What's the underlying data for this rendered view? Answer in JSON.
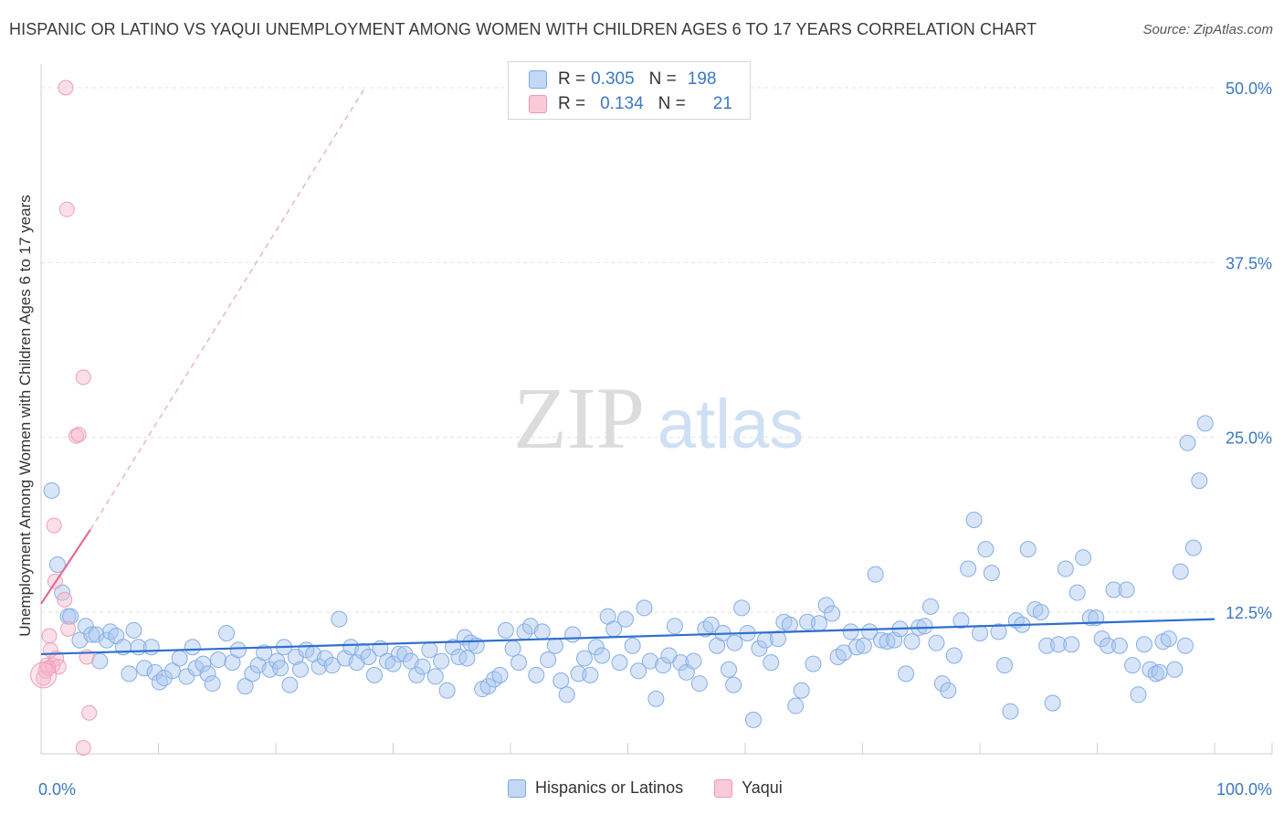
{
  "title": "HISPANIC OR LATINO VS YAQUI UNEMPLOYMENT AMONG WOMEN WITH CHILDREN AGES 6 TO 17 YEARS CORRELATION CHART",
  "source": "Source: ZipAtlas.com",
  "watermark": {
    "zip": "ZIP",
    "atlas": "atlas"
  },
  "legend": {
    "rows": [
      {
        "r_label": "R =",
        "r_value": "0.305",
        "n_label": "N =",
        "n_value": "198",
        "color": "#a9c6ef"
      },
      {
        "r_label": "R =",
        "r_value": "0.134",
        "n_label": "N =",
        "n_value": "21",
        "color": "#f6b8cb"
      }
    ]
  },
  "bottom_legend": [
    {
      "label": "Hispanics or Latinos",
      "color": "#a9c6ef"
    },
    {
      "label": "Yaqui",
      "color": "#f6b8cb"
    }
  ],
  "colors": {
    "blue_point": "#a9c6ef",
    "blue_line": "#2f6fcc",
    "pink_point": "#f6b8cb",
    "pink_line": "#e36b92",
    "axis_label": "#3b78c4"
  },
  "chart_data": {
    "type": "scatter",
    "title": "HISPANIC OR LATINO VS YAQUI UNEMPLOYMENT AMONG WOMEN WITH CHILDREN AGES 6 TO 17 YEARS CORRELATION CHART",
    "xlabel": "",
    "ylabel": "Unemployment Among Women with Children Ages 6 to 17 years",
    "xlim": [
      0,
      100
    ],
    "ylim": [
      0,
      51
    ],
    "x_tick_labels": [
      "0.0%",
      "100.0%"
    ],
    "y_ticks": [
      12.5,
      25.0,
      37.5,
      50.0
    ],
    "y_tick_labels": [
      "12.5%",
      "25.0%",
      "37.5%",
      "50.0%"
    ],
    "grid": "horizontal dashed",
    "legend_position": "top-center",
    "series": [
      {
        "name": "Hispanics or Latinos",
        "color": "#a9c6ef",
        "trend": {
          "x": [
            0,
            100
          ],
          "y": [
            9.5,
            12.0
          ]
        },
        "points": [
          [
            0.9,
            21.2
          ],
          [
            1.4,
            15.9
          ],
          [
            1.8,
            13.9
          ],
          [
            2.3,
            12.2
          ],
          [
            2.5,
            12.2
          ],
          [
            3.3,
            10.5
          ],
          [
            3.8,
            11.5
          ],
          [
            4.3,
            10.9
          ],
          [
            4.7,
            10.9
          ],
          [
            5.0,
            9.0
          ],
          [
            5.6,
            10.5
          ],
          [
            5.9,
            11.1
          ],
          [
            6.4,
            10.8
          ],
          [
            7.0,
            10.0
          ],
          [
            7.5,
            8.1
          ],
          [
            7.9,
            11.2
          ],
          [
            8.3,
            10.0
          ],
          [
            8.8,
            8.5
          ],
          [
            9.4,
            10.0
          ],
          [
            9.7,
            8.2
          ],
          [
            10.1,
            7.5
          ],
          [
            10.5,
            7.8
          ],
          [
            11.2,
            8.3
          ],
          [
            11.8,
            9.2
          ],
          [
            12.4,
            7.9
          ],
          [
            12.9,
            10.0
          ],
          [
            13.2,
            8.5
          ],
          [
            13.8,
            8.8
          ],
          [
            14.2,
            8.1
          ],
          [
            14.6,
            7.4
          ],
          [
            15.1,
            9.1
          ],
          [
            15.8,
            11.0
          ],
          [
            16.3,
            8.9
          ],
          [
            16.8,
            9.8
          ],
          [
            17.4,
            7.2
          ],
          [
            18.0,
            8.1
          ],
          [
            18.5,
            8.7
          ],
          [
            19.0,
            9.6
          ],
          [
            19.5,
            8.4
          ],
          [
            20.1,
            9.0
          ],
          [
            20.7,
            10.0
          ],
          [
            21.2,
            7.3
          ],
          [
            21.7,
            9.3
          ],
          [
            22.1,
            8.4
          ],
          [
            22.6,
            9.8
          ],
          [
            23.2,
            9.5
          ],
          [
            23.7,
            8.6
          ],
          [
            24.2,
            9.2
          ],
          [
            24.8,
            8.7
          ],
          [
            25.4,
            12.0
          ],
          [
            25.9,
            9.2
          ],
          [
            26.4,
            10.0
          ],
          [
            26.9,
            8.9
          ],
          [
            27.4,
            9.7
          ],
          [
            27.9,
            9.3
          ],
          [
            28.4,
            8.0
          ],
          [
            28.9,
            9.9
          ],
          [
            29.5,
            9.0
          ],
          [
            30.0,
            8.8
          ],
          [
            30.5,
            9.5
          ],
          [
            31.0,
            9.5
          ],
          [
            31.5,
            9.0
          ],
          [
            32.0,
            8.0
          ],
          [
            32.5,
            8.6
          ],
          [
            33.1,
            9.8
          ],
          [
            33.6,
            7.9
          ],
          [
            34.1,
            9.0
          ],
          [
            34.6,
            6.9
          ],
          [
            35.1,
            10.0
          ],
          [
            35.6,
            9.3
          ],
          [
            36.1,
            10.7
          ],
          [
            36.6,
            10.3
          ],
          [
            37.1,
            10.1
          ],
          [
            37.6,
            7.0
          ],
          [
            38.1,
            7.2
          ],
          [
            38.6,
            7.7
          ],
          [
            39.1,
            8.0
          ],
          [
            39.6,
            11.2
          ],
          [
            40.2,
            9.9
          ],
          [
            40.7,
            8.9
          ],
          [
            41.2,
            11.1
          ],
          [
            41.7,
            11.5
          ],
          [
            42.2,
            8.0
          ],
          [
            42.7,
            11.1
          ],
          [
            43.2,
            9.1
          ],
          [
            43.8,
            10.1
          ],
          [
            44.3,
            7.6
          ],
          [
            44.8,
            6.6
          ],
          [
            45.3,
            10.9
          ],
          [
            45.8,
            8.1
          ],
          [
            46.3,
            9.2
          ],
          [
            46.8,
            8.0
          ],
          [
            47.3,
            10.0
          ],
          [
            47.8,
            9.4
          ],
          [
            48.3,
            12.2
          ],
          [
            48.8,
            11.3
          ],
          [
            49.3,
            8.9
          ],
          [
            49.8,
            12.0
          ],
          [
            50.4,
            10.1
          ],
          [
            50.9,
            8.3
          ],
          [
            51.4,
            12.8
          ],
          [
            51.9,
            9.0
          ],
          [
            52.4,
            6.3
          ],
          [
            53.0,
            8.7
          ],
          [
            53.5,
            9.4
          ],
          [
            54.0,
            11.5
          ],
          [
            54.5,
            8.9
          ],
          [
            55.0,
            8.2
          ],
          [
            55.6,
            9.0
          ],
          [
            56.1,
            7.4
          ],
          [
            56.6,
            11.3
          ],
          [
            57.1,
            11.6
          ],
          [
            57.6,
            10.1
          ],
          [
            58.1,
            11.0
          ],
          [
            58.6,
            8.4
          ],
          [
            59.1,
            10.3
          ],
          [
            59.7,
            12.8
          ],
          [
            60.2,
            11.0
          ],
          [
            60.7,
            4.8
          ],
          [
            61.2,
            9.9
          ],
          [
            61.7,
            10.5
          ],
          [
            62.2,
            8.9
          ],
          [
            62.8,
            10.6
          ],
          [
            63.3,
            11.8
          ],
          [
            63.8,
            11.6
          ],
          [
            64.3,
            5.8
          ],
          [
            64.8,
            6.9
          ],
          [
            65.3,
            11.8
          ],
          [
            65.8,
            8.8
          ],
          [
            66.3,
            11.7
          ],
          [
            66.9,
            13.0
          ],
          [
            67.4,
            12.4
          ],
          [
            67.9,
            9.3
          ],
          [
            68.4,
            9.6
          ],
          [
            69.0,
            11.1
          ],
          [
            69.5,
            10.0
          ],
          [
            70.1,
            10.1
          ],
          [
            70.6,
            11.1
          ],
          [
            71.1,
            15.2
          ],
          [
            71.6,
            10.5
          ],
          [
            72.1,
            10.4
          ],
          [
            72.7,
            10.5
          ],
          [
            73.2,
            11.3
          ],
          [
            73.7,
            8.1
          ],
          [
            74.2,
            10.4
          ],
          [
            74.8,
            11.4
          ],
          [
            75.3,
            11.5
          ],
          [
            75.8,
            12.9
          ],
          [
            76.3,
            10.3
          ],
          [
            76.8,
            7.4
          ],
          [
            77.3,
            6.9
          ],
          [
            77.8,
            9.4
          ],
          [
            78.4,
            11.9
          ],
          [
            79.0,
            15.6
          ],
          [
            79.5,
            19.1
          ],
          [
            80.0,
            11.0
          ],
          [
            80.5,
            17.0
          ],
          [
            81.0,
            15.3
          ],
          [
            81.6,
            11.1
          ],
          [
            82.1,
            8.7
          ],
          [
            82.6,
            5.4
          ],
          [
            83.1,
            11.9
          ],
          [
            83.6,
            11.6
          ],
          [
            84.1,
            17.0
          ],
          [
            84.7,
            12.7
          ],
          [
            85.2,
            12.5
          ],
          [
            85.7,
            10.1
          ],
          [
            86.2,
            6.0
          ],
          [
            86.7,
            10.2
          ],
          [
            87.3,
            15.6
          ],
          [
            87.8,
            10.2
          ],
          [
            88.3,
            13.9
          ],
          [
            88.8,
            16.4
          ],
          [
            89.4,
            12.1
          ],
          [
            89.9,
            12.1
          ],
          [
            90.4,
            10.6
          ],
          [
            90.9,
            10.1
          ],
          [
            91.4,
            14.1
          ],
          [
            91.9,
            10.1
          ],
          [
            92.5,
            14.1
          ],
          [
            93.0,
            8.7
          ],
          [
            93.5,
            6.6
          ],
          [
            94.0,
            10.2
          ],
          [
            94.5,
            8.4
          ],
          [
            95.0,
            8.1
          ],
          [
            95.6,
            10.4
          ],
          [
            96.1,
            10.6
          ],
          [
            96.6,
            8.4
          ],
          [
            97.1,
            15.4
          ],
          [
            97.7,
            24.6
          ],
          [
            98.2,
            17.1
          ],
          [
            98.7,
            21.9
          ],
          [
            99.2,
            26.0
          ],
          [
            97.5,
            10.1
          ],
          [
            95.3,
            8.2
          ],
          [
            59.0,
            7.3
          ],
          [
            36.3,
            9.2
          ],
          [
            20.4,
            8.5
          ]
        ]
      },
      {
        "name": "Yaqui",
        "color": "#f6b8cb",
        "trend": {
          "x": [
            0,
            4.2
          ],
          "y": [
            13.1,
            18.4
          ]
        },
        "trend_ext": {
          "x": [
            4.2,
            27.6
          ],
          "y": [
            18.4,
            50.0
          ]
        },
        "points": [
          [
            0.2,
            7.8
          ],
          [
            0.4,
            8.3
          ],
          [
            0.5,
            8.7
          ],
          [
            0.7,
            10.8
          ],
          [
            0.8,
            9.8
          ],
          [
            1.0,
            8.7
          ],
          [
            1.1,
            18.7
          ],
          [
            1.2,
            14.7
          ],
          [
            1.3,
            9.2
          ],
          [
            1.5,
            8.6
          ],
          [
            2.0,
            13.4
          ],
          [
            2.1,
            50.0
          ],
          [
            2.2,
            41.3
          ],
          [
            2.3,
            11.3
          ],
          [
            3.0,
            25.1
          ],
          [
            3.2,
            25.2
          ],
          [
            3.6,
            29.3
          ],
          [
            3.9,
            9.3
          ],
          [
            4.1,
            5.3
          ],
          [
            3.6,
            2.8
          ],
          [
            0.6,
            8.5
          ]
        ]
      }
    ]
  }
}
